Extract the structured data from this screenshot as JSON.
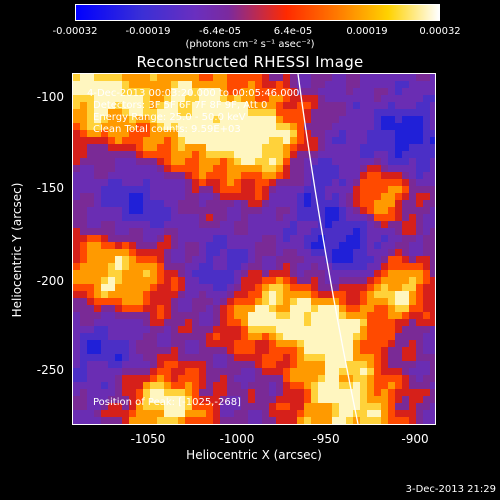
{
  "colorbar": {
    "ticks": [
      "-0.00032",
      "-0.00019",
      "-6.4e-05",
      "6.4e-05",
      "0.00019",
      "0.00032"
    ],
    "units": "(photons cm⁻² s⁻¹ asec⁻²)"
  },
  "title": "Reconstructed RHESSI Image",
  "annotations": {
    "time": "4-Dec-2013 00:03:20.000 to 00:05:46.000",
    "detectors": "Detectors: 3F 5F 6F 7F 8F 9F, Att 0",
    "energy": "Energy Range: 25.0 - 50.0 keV",
    "clean": "Clean    Total counts: 9.59E+03",
    "peak": "Position of Peak: [-1025,-268]"
  },
  "axes": {
    "xlabel": "Heliocentric X (arcsec)",
    "ylabel": "Heliocentric Y (arcsec)",
    "xticks": [
      "-1050",
      "-1000",
      "-950",
      "-900"
    ],
    "yticks": [
      "-100",
      "-150",
      "-200",
      "-250"
    ]
  },
  "timestamp": "3-Dec-2013 21:29"
}
